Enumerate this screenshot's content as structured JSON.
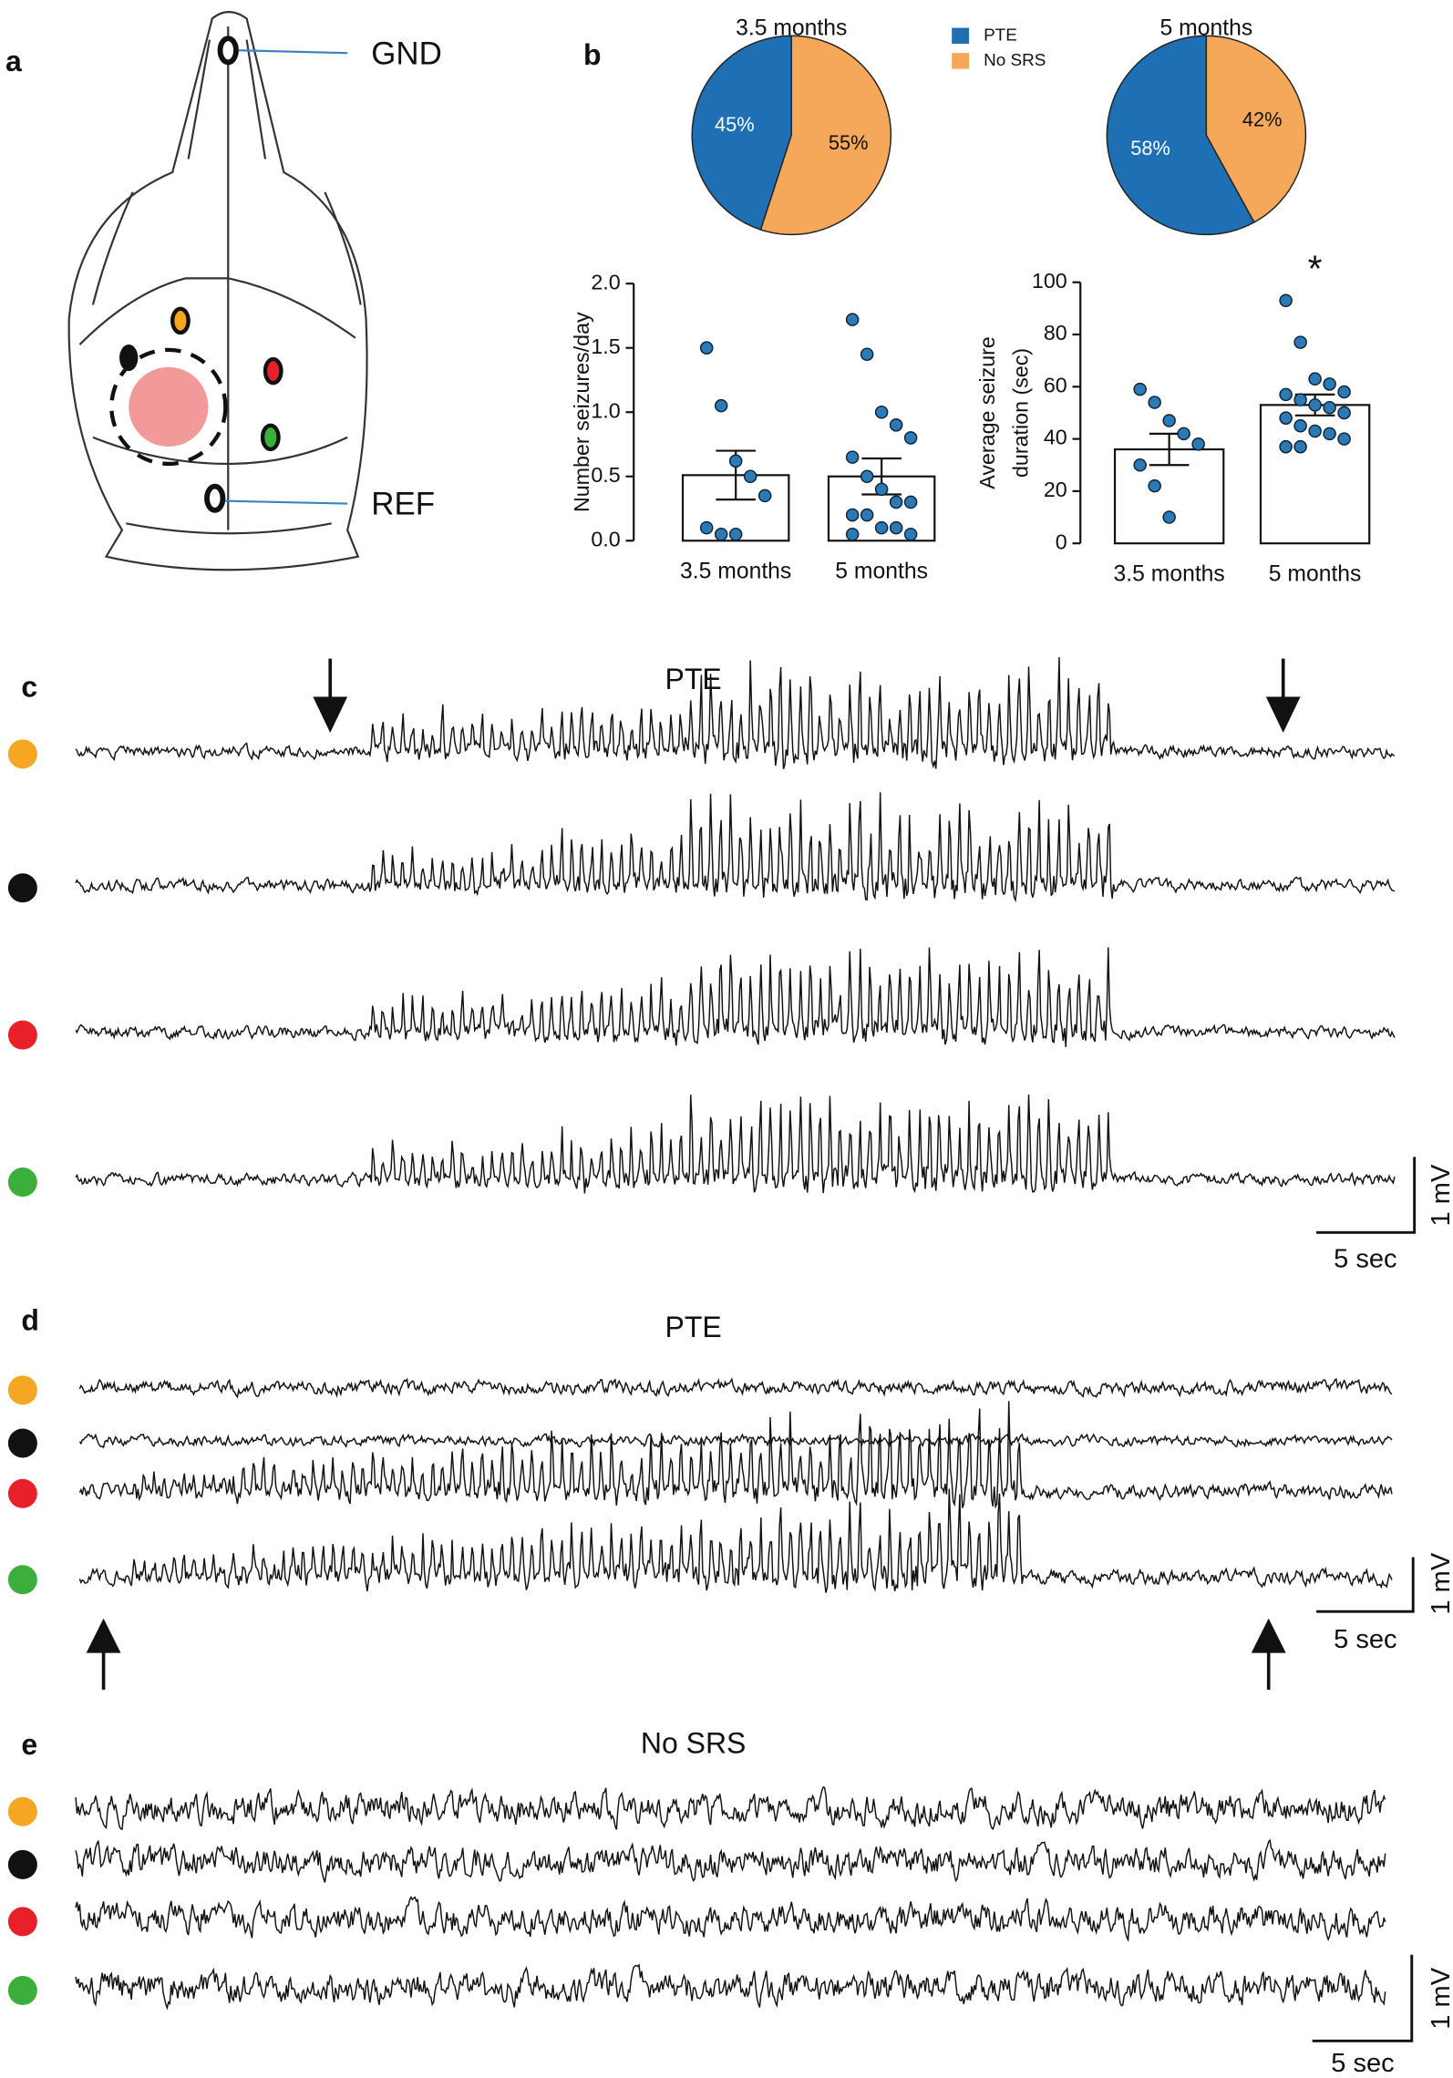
{
  "panels": {
    "a": {
      "label": "a",
      "gnd": "GND",
      "ref": "REF"
    },
    "b": {
      "label": "b"
    },
    "c": {
      "label": "c",
      "title": "PTE",
      "scale_y": "1 mV",
      "scale_x": "5 sec"
    },
    "d": {
      "label": "d",
      "title": "PTE",
      "scale_y": "1 mV",
      "scale_x": "5 sec"
    },
    "e": {
      "label": "e",
      "title": "No SRS",
      "scale_y": "1 mV",
      "scale_x": "5 sec"
    }
  },
  "chart_data": [
    {
      "type": "pie",
      "title": "3.5 months",
      "categories": [
        "PTE",
        "No SRS"
      ],
      "values": [
        45,
        55
      ],
      "value_labels": [
        "45%",
        "55%"
      ],
      "colors": [
        "#1f6fb5",
        "#f5a85a"
      ],
      "legend": true
    },
    {
      "type": "pie",
      "title": "5 months",
      "categories": [
        "PTE",
        "No SRS"
      ],
      "values": [
        58,
        42
      ],
      "value_labels": [
        "58%",
        "42%"
      ],
      "colors": [
        "#1f6fb5",
        "#f5a85a"
      ],
      "legend": false
    },
    {
      "type": "bar",
      "y_label": [
        "Number seizures/day"
      ],
      "categories": [
        "3.5 months",
        "5 months"
      ],
      "values": [
        0.51,
        0.5
      ],
      "errors": [
        0.19,
        0.14
      ],
      "points": [
        [
          1.5,
          1.05,
          0.62,
          0.5,
          0.35,
          0.1,
          0.05,
          0.05
        ],
        [
          1.72,
          1.45,
          1.0,
          0.9,
          0.8,
          0.65,
          0.5,
          0.4,
          0.3,
          0.3,
          0.2,
          0.2,
          0.1,
          0.1,
          0.05,
          0.05
        ]
      ],
      "color": "#ffffff",
      "point_color": "#2a7ab8",
      "ylim": [
        0,
        2
      ],
      "yticks": [
        {
          "value": 0,
          "label": "0.0"
        },
        {
          "value": 0.5,
          "label": "0.5"
        },
        {
          "value": 1,
          "label": "1.0"
        },
        {
          "value": 1.5,
          "label": "1.5"
        },
        {
          "value": 2,
          "label": "2.0"
        }
      ]
    },
    {
      "type": "bar",
      "y_label": [
        "Average seizure",
        "duration (sec)"
      ],
      "categories": [
        "3.5 months",
        "5 months"
      ],
      "values": [
        36,
        53
      ],
      "errors": [
        6,
        4
      ],
      "points": [
        [
          59,
          54,
          47,
          42,
          38,
          30,
          22,
          10
        ],
        [
          93,
          77,
          63,
          61,
          58,
          57,
          55,
          53,
          52,
          50,
          48,
          45,
          43,
          42,
          40,
          37,
          37
        ]
      ],
      "color": "#ffffff",
      "point_color": "#2a7ab8",
      "annotation": "*",
      "ylim": [
        0,
        100
      ],
      "yticks": [
        0,
        20,
        40,
        60,
        80,
        100
      ]
    }
  ]
}
